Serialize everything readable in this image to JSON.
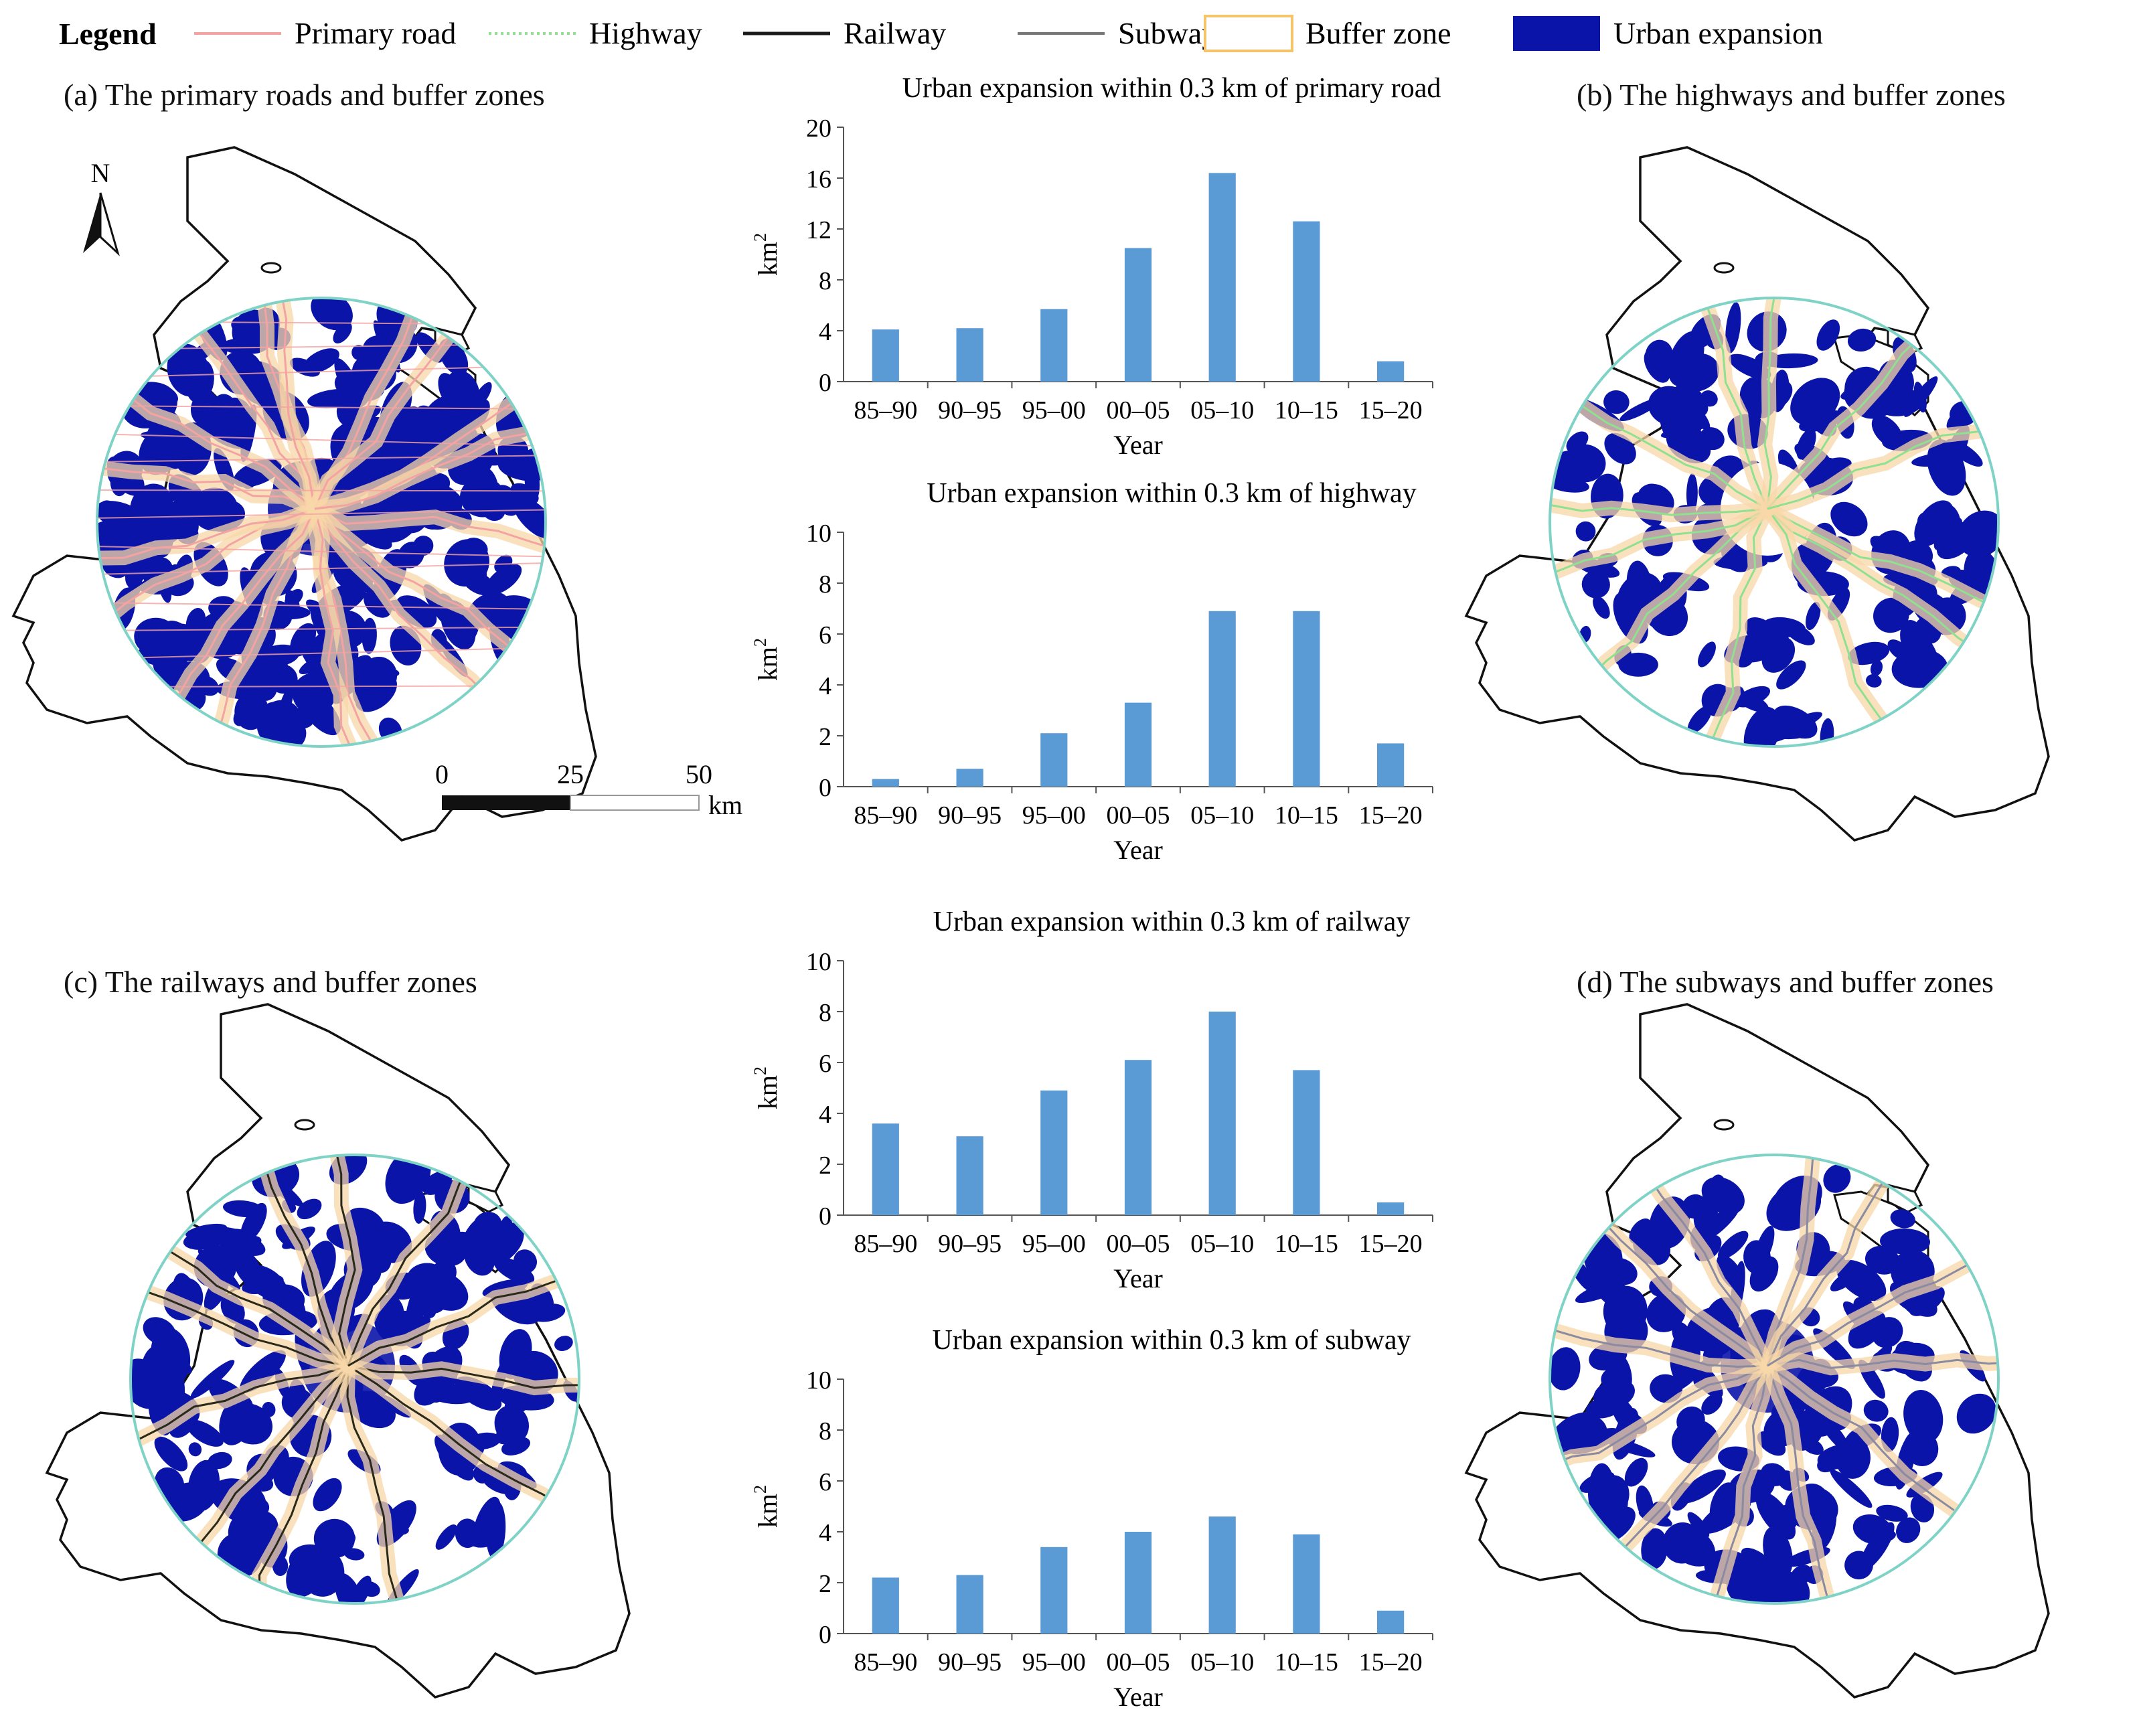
{
  "legend": {
    "title": "Legend",
    "items": [
      {
        "label": "Primary road",
        "symbol": "line",
        "color": "#f4a3a3"
      },
      {
        "label": "Highway",
        "symbol": "dotted-line",
        "color": "#8fe08f"
      },
      {
        "label": "Railway",
        "symbol": "line",
        "color": "#1a1a1a"
      },
      {
        "label": "Subway",
        "symbol": "line",
        "color": "#777777"
      },
      {
        "label": "Buffer zone",
        "symbol": "box-outline",
        "color": "#f5c36b"
      },
      {
        "label": "Urban expansion",
        "symbol": "box-fill",
        "color": "#0a14a8"
      }
    ]
  },
  "maps": {
    "a": {
      "title": "(a)  The primary roads and buffer zones",
      "network": "primary"
    },
    "b": {
      "title": "(b)  The highways and buffer zones",
      "network": "highway"
    },
    "c": {
      "title": "(c)  The railways and buffer zones",
      "network": "railway"
    },
    "d": {
      "title": "(d)  The subways and buffer zones",
      "network": "subway"
    },
    "north_label": "N",
    "scalebar": {
      "ticks": [
        "0",
        "25",
        "50"
      ],
      "unit": "km"
    }
  },
  "colors": {
    "urban": "#0a14a8",
    "buffer": "#f8d7a8",
    "circle": "#7fd3c6",
    "boundary": "#111111",
    "bar": "#5b9bd5",
    "primary_road": "#f4a3a3",
    "highway": "#8fe08f",
    "railway": "#2a2a1a",
    "subway": "#8a8aa0"
  },
  "chart_data": [
    {
      "type": "bar",
      "title": "Urban expansion within 0.3 km of primary road",
      "categories": [
        "85–90",
        "90–95",
        "95–00",
        "00–05",
        "05–10",
        "10–15",
        "15–20"
      ],
      "values": [
        4.1,
        4.2,
        5.7,
        10.5,
        16.4,
        12.6,
        1.6
      ],
      "xlabel": "Year",
      "ylabel": "km2",
      "ylim": [
        0,
        20
      ],
      "yticks": [
        0,
        4,
        8,
        12,
        16,
        20
      ]
    },
    {
      "type": "bar",
      "title": "Urban expansion within 0.3 km of highway",
      "categories": [
        "85–90",
        "90–95",
        "95–00",
        "00–05",
        "05–10",
        "10–15",
        "15–20"
      ],
      "values": [
        0.3,
        0.7,
        2.1,
        3.3,
        6.9,
        6.9,
        1.7
      ],
      "xlabel": "Year",
      "ylabel": "km2",
      "ylim": [
        0,
        10
      ],
      "yticks": [
        0,
        2,
        4,
        6,
        8,
        10
      ]
    },
    {
      "type": "bar",
      "title": "Urban expansion within 0.3 km of railway",
      "categories": [
        "85–90",
        "90–95",
        "95–00",
        "00–05",
        "05–10",
        "10–15",
        "15–20"
      ],
      "values": [
        3.6,
        3.1,
        4.9,
        6.1,
        8.0,
        5.7,
        0.5
      ],
      "xlabel": "Year",
      "ylabel": "km2",
      "ylim": [
        0,
        10
      ],
      "yticks": [
        0,
        2,
        4,
        6,
        8,
        10
      ]
    },
    {
      "type": "bar",
      "title": "Urban expansion within 0.3 km of subway",
      "categories": [
        "85–90",
        "90–95",
        "95–00",
        "00–05",
        "05–10",
        "10–15",
        "15–20"
      ],
      "values": [
        2.2,
        2.3,
        3.4,
        4.0,
        4.6,
        3.9,
        0.9
      ],
      "xlabel": "Year",
      "ylabel": "km2",
      "ylim": [
        0,
        10
      ],
      "yticks": [
        0,
        2,
        4,
        6,
        8,
        10
      ]
    }
  ]
}
